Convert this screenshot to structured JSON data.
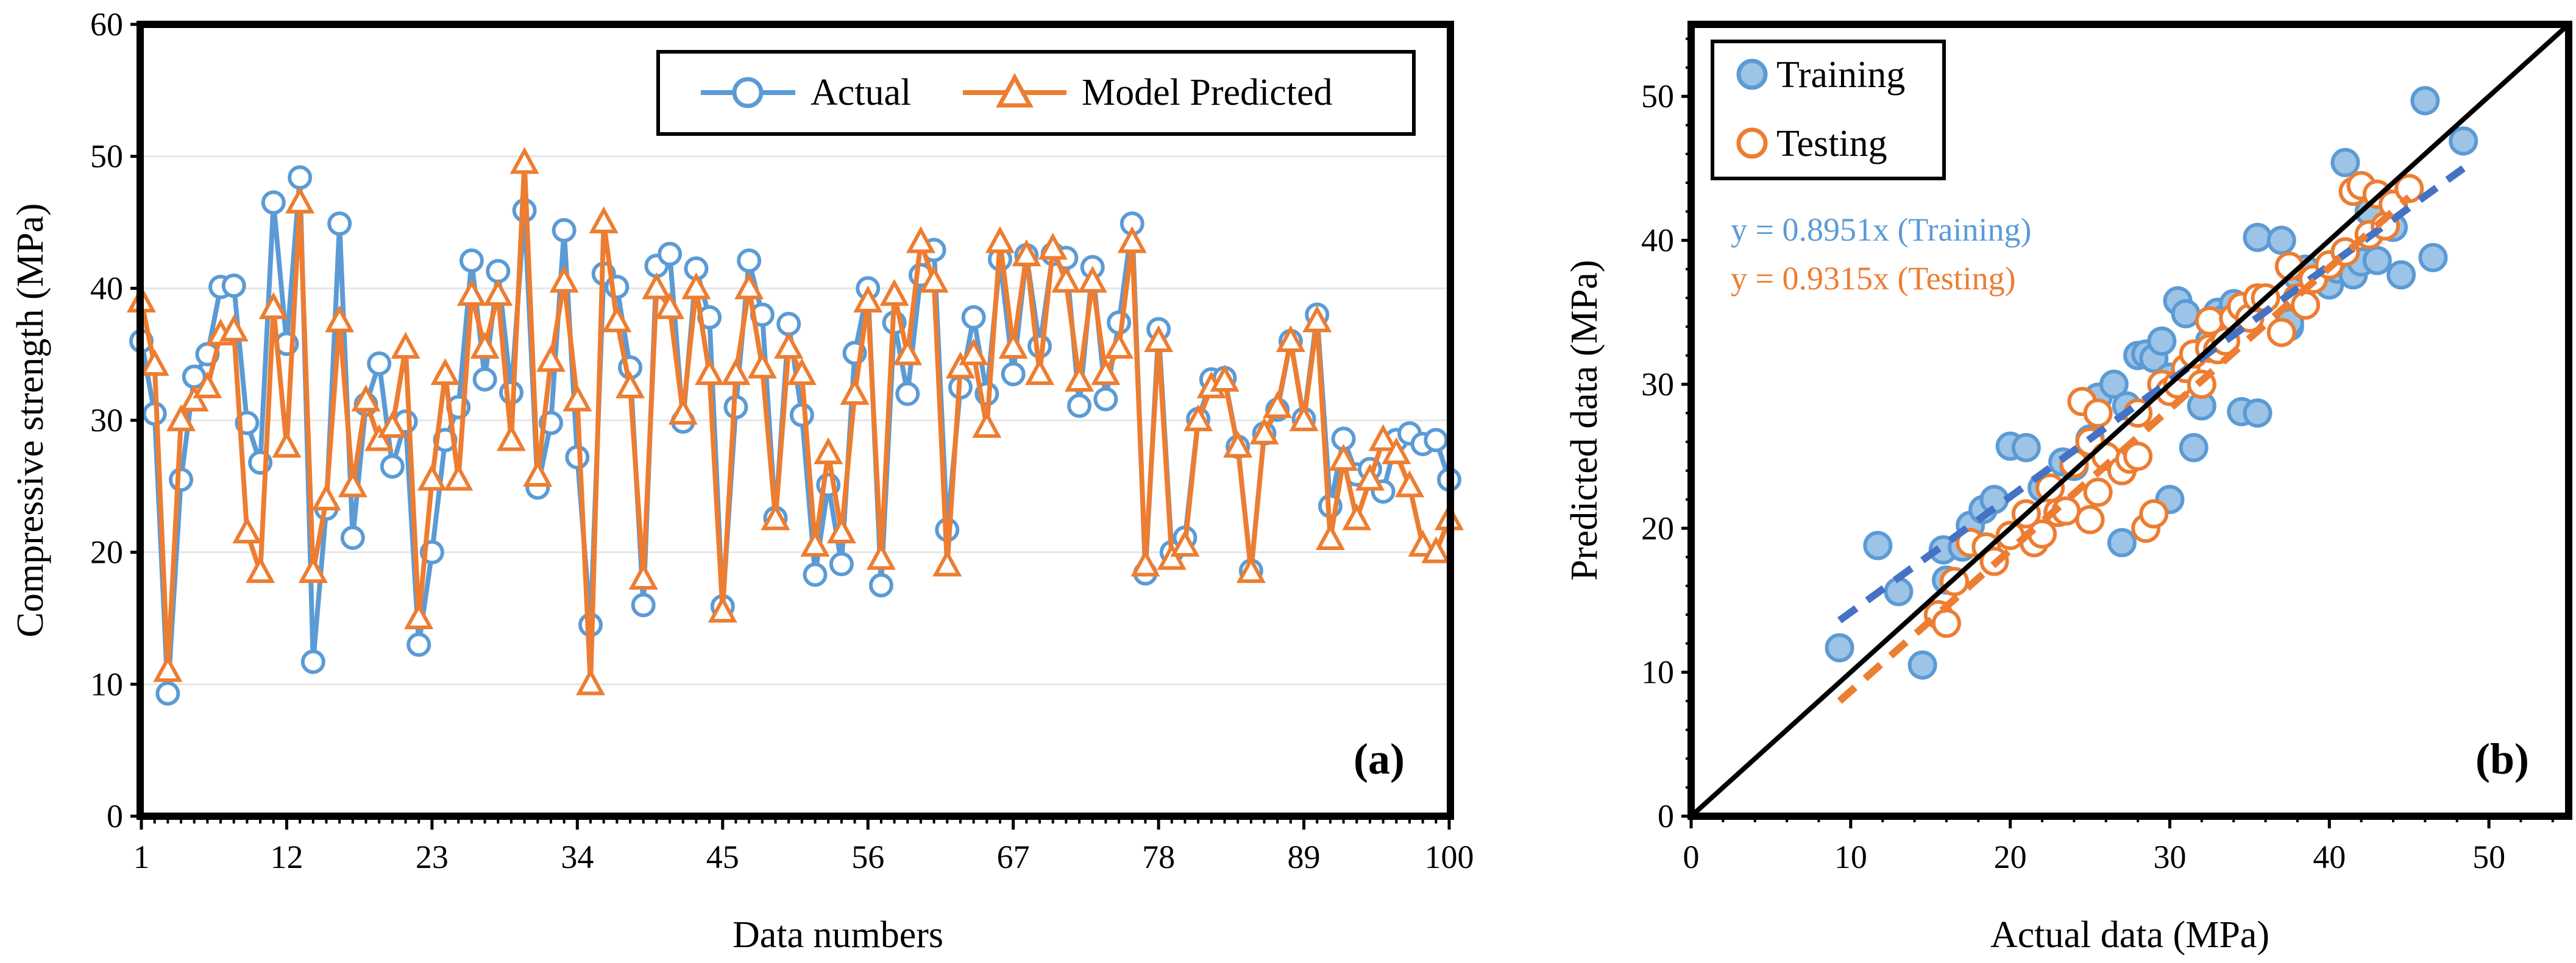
{
  "chart_data": [
    {
      "type": "line",
      "panel_label": "(a)",
      "xlabel": "Data numbers",
      "ylabel": "Compressive strength (MPa)",
      "xlim": [
        1,
        100
      ],
      "ylim": [
        0,
        60
      ],
      "x_ticks": [
        1,
        12,
        23,
        34,
        45,
        56,
        67,
        78,
        89,
        100
      ],
      "x_ticks_labels": [
        "1",
        "12",
        "23",
        "34",
        "45",
        "56",
        "67",
        "78",
        "89",
        "100"
      ],
      "y_ticks": [
        0,
        10,
        20,
        30,
        40,
        50,
        60
      ],
      "y_ticks_labels": [
        "0",
        "10",
        "20",
        "30",
        "40",
        "50",
        "60"
      ],
      "legend_position": "top-right",
      "series": [
        {
          "name": "Actual",
          "color": "#5B9BD5",
          "marker": "circle",
          "values": [
            36.0,
            30.5,
            9.3,
            25.5,
            33.3,
            35.0,
            40.1,
            40.2,
            29.8,
            26.8,
            46.5,
            35.8,
            48.4,
            11.7,
            23.3,
            44.9,
            21.1,
            31.2,
            34.3,
            26.5,
            29.9,
            13.0,
            20.0,
            28.5,
            31.0,
            42.1,
            33.1,
            41.3,
            32.1,
            45.9,
            24.9,
            29.8,
            44.4,
            27.2,
            14.5,
            41.1,
            40.1,
            34.0,
            16.0,
            41.7,
            42.6,
            29.9,
            41.5,
            37.8,
            15.9,
            31.0,
            42.1,
            38.0,
            22.6,
            37.3,
            30.4,
            18.3,
            25.1,
            19.1,
            35.1,
            40.0,
            17.5,
            37.4,
            32.0,
            41.0,
            42.9,
            21.7,
            32.5,
            37.8,
            32.0,
            42.2,
            33.5,
            42.5,
            35.6,
            42.6,
            42.3,
            31.1,
            41.6,
            31.6,
            37.4,
            44.9,
            18.4,
            36.9,
            20.0,
            21.1,
            30.1,
            33.1,
            33.2,
            28.0,
            18.6,
            29.0,
            30.8,
            36.0,
            30.1,
            38.0,
            23.5,
            28.6,
            25.9,
            26.3,
            24.6,
            28.5,
            29.0,
            28.2,
            28.5,
            25.5
          ]
        },
        {
          "name": "Model Predicted",
          "color": "#ED7D31",
          "marker": "triangle",
          "values": [
            39.0,
            34.2,
            11.0,
            30.0,
            31.5,
            32.5,
            36.5,
            36.8,
            21.5,
            18.5,
            38.5,
            28.0,
            46.5,
            18.5,
            24.0,
            37.5,
            25.0,
            31.5,
            28.5,
            29.5,
            35.5,
            15.0,
            25.5,
            33.5,
            25.5,
            39.5,
            35.5,
            39.5,
            28.5,
            49.5,
            25.8,
            34.5,
            40.5,
            31.5,
            10.0,
            45.0,
            37.5,
            32.5,
            18.0,
            40.0,
            38.5,
            30.5,
            40.0,
            33.5,
            15.5,
            33.5,
            40.0,
            34.0,
            22.5,
            35.5,
            33.5,
            20.5,
            27.5,
            21.5,
            32.0,
            39.0,
            19.5,
            39.5,
            35.0,
            43.5,
            40.5,
            19.0,
            34.0,
            35.0,
            29.5,
            43.5,
            35.5,
            42.5,
            33.5,
            43.0,
            40.5,
            33.0,
            40.5,
            33.5,
            35.5,
            43.5,
            19.0,
            36.0,
            19.5,
            20.5,
            30.0,
            32.5,
            33.0,
            28.0,
            18.5,
            29.0,
            31.0,
            36.0,
            30.0,
            37.5,
            21.0,
            27.0,
            22.5,
            25.5,
            28.5,
            27.5,
            25.0,
            20.5,
            20.0,
            22.5
          ]
        }
      ]
    },
    {
      "type": "scatter",
      "panel_label": "(b)",
      "xlabel": "Actual data (MPa)",
      "ylabel": "Predicted data (MPa)",
      "xlim": [
        0,
        55
      ],
      "ylim": [
        0,
        55
      ],
      "x_ticks": [
        0,
        10,
        20,
        30,
        40,
        50
      ],
      "x_ticks_labels": [
        "0",
        "10",
        "20",
        "30",
        "40",
        "50"
      ],
      "y_ticks": [
        0,
        10,
        20,
        30,
        40,
        50
      ],
      "y_ticks_labels": [
        "0",
        "10",
        "20",
        "30",
        "40",
        "50"
      ],
      "legend_position": "top-left",
      "identity_line": [
        [
          0,
          0
        ],
        [
          55,
          55
        ]
      ],
      "annotations": [
        {
          "text": "y = 0.8951x (Training)",
          "color": "#5B9BD5"
        },
        {
          "text": "y = 0.9315x (Testing)",
          "color": "#ED7D31"
        }
      ],
      "series": [
        {
          "name": "Training",
          "color": "#5B9BD5",
          "marker": "circle-filled",
          "points": [
            [
              9.3,
              11.7
            ],
            [
              11.7,
              18.8
            ],
            [
              13.0,
              15.6
            ],
            [
              14.5,
              10.5
            ],
            [
              15.8,
              18.5
            ],
            [
              16.0,
              16.4
            ],
            [
              17.0,
              18.7
            ],
            [
              17.5,
              20.2
            ],
            [
              18.3,
              21.3
            ],
            [
              19.0,
              22.0
            ],
            [
              20.0,
              25.7
            ],
            [
              21.0,
              25.6
            ],
            [
              22.0,
              22.8
            ],
            [
              23.3,
              24.6
            ],
            [
              24.0,
              24.3
            ],
            [
              25.0,
              26.2
            ],
            [
              25.5,
              29.1
            ],
            [
              26.5,
              30.0
            ],
            [
              27.0,
              19.0
            ],
            [
              27.3,
              28.5
            ],
            [
              28.0,
              32.0
            ],
            [
              28.5,
              32.1
            ],
            [
              29.0,
              31.8
            ],
            [
              29.5,
              33.0
            ],
            [
              30.0,
              22.0
            ],
            [
              30.0,
              30.5
            ],
            [
              30.5,
              35.8
            ],
            [
              31.0,
              34.9
            ],
            [
              31.5,
              25.6
            ],
            [
              32.0,
              28.5
            ],
            [
              32.5,
              33.0
            ],
            [
              33.0,
              35.0
            ],
            [
              33.5,
              34.6
            ],
            [
              34.0,
              35.6
            ],
            [
              34.5,
              28.1
            ],
            [
              35.5,
              28.0
            ],
            [
              35.5,
              40.2
            ],
            [
              37.0,
              40.0
            ],
            [
              37.5,
              34.0
            ],
            [
              37.5,
              34.3
            ],
            [
              38.0,
              37.5
            ],
            [
              38.5,
              38.0
            ],
            [
              40.0,
              37.6
            ],
            [
              40.0,
              36.9
            ],
            [
              40.5,
              38.0
            ],
            [
              41.0,
              45.4
            ],
            [
              41.5,
              37.6
            ],
            [
              42.0,
              38.5
            ],
            [
              42.5,
              42.0
            ],
            [
              43.0,
              38.6
            ],
            [
              44.0,
              40.9
            ],
            [
              44.5,
              37.6
            ],
            [
              46.0,
              49.7
            ],
            [
              46.5,
              38.8
            ],
            [
              48.4,
              46.9
            ]
          ]
        },
        {
          "name": "Testing",
          "color": "#ED7D31",
          "marker": "circle-open",
          "points": [
            [
              15.5,
              14.0
            ],
            [
              16.0,
              13.4
            ],
            [
              16.5,
              16.3
            ],
            [
              17.5,
              19.0
            ],
            [
              18.5,
              18.7
            ],
            [
              19.0,
              17.7
            ],
            [
              20.0,
              19.5
            ],
            [
              21.0,
              21.0
            ],
            [
              21.5,
              19.0
            ],
            [
              22.0,
              19.6
            ],
            [
              22.5,
              22.8
            ],
            [
              23.0,
              21.1
            ],
            [
              23.5,
              21.2
            ],
            [
              24.0,
              24.5
            ],
            [
              24.5,
              28.8
            ],
            [
              25.0,
              20.6
            ],
            [
              25.0,
              26.0
            ],
            [
              25.5,
              22.5
            ],
            [
              25.5,
              28.0
            ],
            [
              26.0,
              25.0
            ],
            [
              27.0,
              24.0
            ],
            [
              27.5,
              24.8
            ],
            [
              28.0,
              25.0
            ],
            [
              28.0,
              28.0
            ],
            [
              28.5,
              20.0
            ],
            [
              29.0,
              21.0
            ],
            [
              29.5,
              30.0
            ],
            [
              30.0,
              29.5
            ],
            [
              30.5,
              30.0
            ],
            [
              31.0,
              31.1
            ],
            [
              31.5,
              32.1
            ],
            [
              32.0,
              30.0
            ],
            [
              32.5,
              32.5
            ],
            [
              32.5,
              34.4
            ],
            [
              33.0,
              32.4
            ],
            [
              33.5,
              33.0
            ],
            [
              34.0,
              34.6
            ],
            [
              34.5,
              35.4
            ],
            [
              35.0,
              34.6
            ],
            [
              35.5,
              36.0
            ],
            [
              36.0,
              36.0
            ],
            [
              37.0,
              33.6
            ],
            [
              37.5,
              38.2
            ],
            [
              38.0,
              36.0
            ],
            [
              38.5,
              35.5
            ],
            [
              39.0,
              37.3
            ],
            [
              40.0,
              38.3
            ],
            [
              41.0,
              39.2
            ],
            [
              41.5,
              43.4
            ],
            [
              42.0,
              43.8
            ],
            [
              42.5,
              40.4
            ],
            [
              43.0,
              43.2
            ],
            [
              43.5,
              41.0
            ],
            [
              44.0,
              42.5
            ],
            [
              45.0,
              43.6
            ]
          ]
        }
      ],
      "trendlines": [
        {
          "name": "Training",
          "color": "#4472C4",
          "x_range": [
            9.3,
            48.4
          ],
          "y_range": [
            13.6,
            45.0
          ]
        },
        {
          "name": "Testing",
          "color": "#ED7D31",
          "x_range": [
            9.3,
            45.0
          ],
          "y_range": [
            8.0,
            43.0
          ]
        }
      ]
    }
  ]
}
